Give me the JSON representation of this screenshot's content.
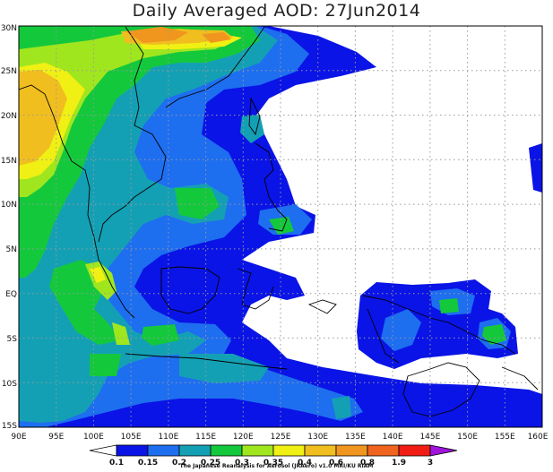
{
  "title": "Daily Averaged AOD: 27Jun2014",
  "credit": "The Japanese Reanalysis for Aerosol (JRAero) v1.0 MRI/KU RIAM",
  "map": {
    "lon_range": [
      90,
      160
    ],
    "lat_range": [
      -15,
      30
    ],
    "lon_ticks": [
      "90E",
      "95E",
      "100E",
      "105E",
      "110E",
      "115E",
      "120E",
      "125E",
      "130E",
      "135E",
      "140E",
      "145E",
      "150E",
      "155E",
      "160E"
    ],
    "lat_ticks": [
      "30N",
      "25N",
      "20N",
      "15N",
      "10N",
      "5N",
      "EQ",
      "5S",
      "10S",
      "15S"
    ],
    "grid": "dotted"
  },
  "colorbar": {
    "levels": [
      "0.1",
      "0.15",
      "0.2",
      "0.25",
      "0.3",
      "0.35",
      "0.4",
      "0.6",
      "0.8",
      "1.9",
      "3"
    ],
    "colors": [
      "#ffffff",
      "#0a14e6",
      "#1e6ef0",
      "#14a0b4",
      "#14c83c",
      "#a0e61e",
      "#f0f014",
      "#f0be1e",
      "#f0961e",
      "#f01e14",
      "#a014dc"
    ]
  },
  "colors": {
    "c015": "#0a14e6",
    "c020": "#1e6ef0",
    "c025": "#14a0b4",
    "c030": "#14c83c",
    "c035": "#a0e61e",
    "c040": "#f0f014",
    "c060": "#f0be1e",
    "c080": "#f0961e",
    "c19": "#f01e14"
  }
}
